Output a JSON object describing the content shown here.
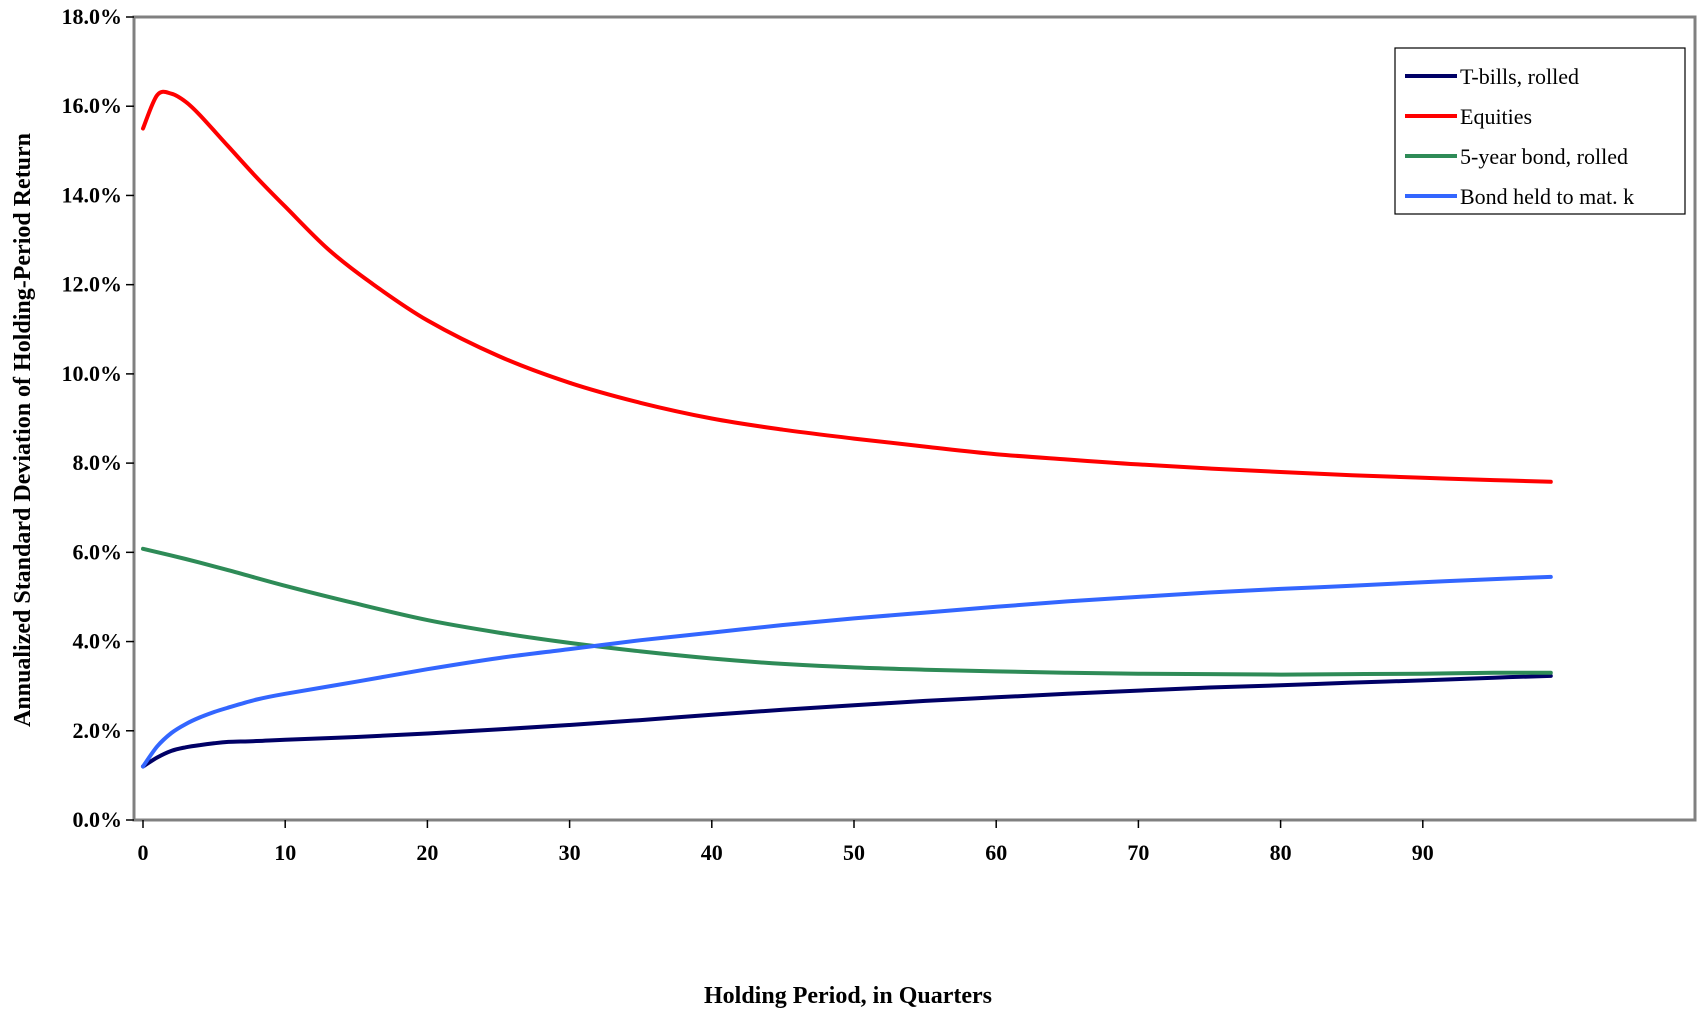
{
  "chart_data": {
    "type": "line",
    "title": "",
    "xlabel": "Holding Period, in Quarters",
    "ylabel": "Annualized Standard Deviation of Holding-Period Return",
    "xlim": [
      0,
      100
    ],
    "ylim": [
      0,
      18
    ],
    "x_ticks": [
      "0",
      "10",
      "20",
      "30",
      "40",
      "50",
      "60",
      "70",
      "80",
      "90"
    ],
    "y_ticks": [
      "0.0%",
      "2.0%",
      "4.0%",
      "6.0%",
      "8.0%",
      "10.0%",
      "12.0%",
      "14.0%",
      "16.0%",
      "18.0%"
    ],
    "grid": false,
    "legend_position": "top-right",
    "series": [
      {
        "name": "T-bills, rolled",
        "color": "#000066",
        "x": [
          0,
          1,
          2,
          3,
          4,
          5,
          6,
          8,
          10,
          15,
          20,
          25,
          30,
          35,
          40,
          45,
          50,
          55,
          60,
          65,
          70,
          75,
          80,
          85,
          90,
          95,
          99
        ],
        "y": [
          1.2,
          1.4,
          1.55,
          1.63,
          1.68,
          1.72,
          1.75,
          1.77,
          1.8,
          1.86,
          1.94,
          2.03,
          2.13,
          2.24,
          2.36,
          2.47,
          2.57,
          2.67,
          2.75,
          2.83,
          2.9,
          2.97,
          3.02,
          3.08,
          3.13,
          3.19,
          3.23
        ]
      },
      {
        "name": "Equities",
        "color": "#ff0000",
        "x": [
          0,
          1,
          2,
          3,
          4,
          6,
          8,
          10,
          13,
          16,
          20,
          25,
          30,
          35,
          40,
          45,
          50,
          55,
          60,
          65,
          70,
          75,
          80,
          85,
          90,
          95,
          99
        ],
        "y": [
          15.5,
          16.25,
          16.28,
          16.1,
          15.8,
          15.1,
          14.4,
          13.75,
          12.8,
          12.05,
          11.2,
          10.4,
          9.8,
          9.35,
          9.0,
          8.75,
          8.55,
          8.37,
          8.2,
          8.08,
          7.97,
          7.88,
          7.8,
          7.73,
          7.67,
          7.62,
          7.58
        ]
      },
      {
        "name": "5-year bond, rolled",
        "color": "#2e8b57",
        "x": [
          0,
          3,
          6,
          10,
          15,
          20,
          25,
          30,
          35,
          40,
          45,
          50,
          55,
          60,
          65,
          70,
          75,
          80,
          85,
          90,
          95,
          99
        ],
        "y": [
          6.08,
          5.85,
          5.6,
          5.25,
          4.85,
          4.48,
          4.2,
          3.97,
          3.78,
          3.62,
          3.5,
          3.42,
          3.37,
          3.33,
          3.3,
          3.28,
          3.27,
          3.26,
          3.27,
          3.28,
          3.3,
          3.3
        ]
      },
      {
        "name": "Bond held to mat. k",
        "color": "#3366ff",
        "x": [
          0,
          1,
          2,
          3,
          4,
          5,
          6,
          8,
          10,
          15,
          20,
          25,
          30,
          35,
          40,
          45,
          50,
          55,
          60,
          65,
          70,
          75,
          80,
          85,
          90,
          95,
          99
        ],
        "y": [
          1.2,
          1.65,
          1.95,
          2.15,
          2.3,
          2.42,
          2.52,
          2.7,
          2.83,
          3.1,
          3.38,
          3.63,
          3.83,
          4.03,
          4.2,
          4.37,
          4.52,
          4.65,
          4.78,
          4.9,
          5.0,
          5.1,
          5.18,
          5.25,
          5.33,
          5.4,
          5.45
        ]
      }
    ]
  }
}
